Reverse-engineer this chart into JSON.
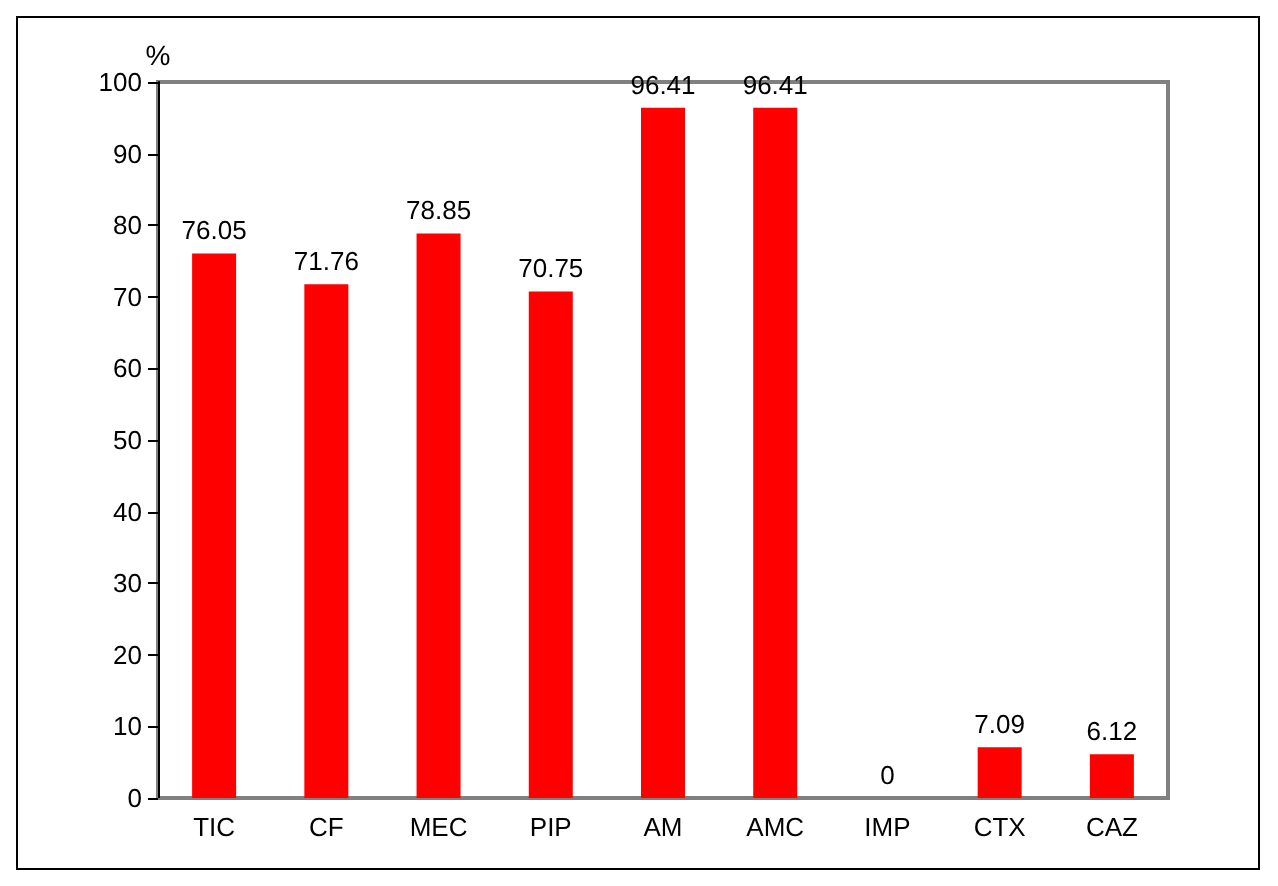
{
  "chart_data": {
    "type": "bar",
    "ylabel": "%",
    "categories": [
      "TIC",
      "CF",
      "MEC",
      "PIP",
      "AM",
      "AMC",
      "IMP",
      "CTX",
      "CAZ"
    ],
    "values": [
      76.05,
      71.76,
      78.85,
      70.75,
      96.41,
      96.41,
      0,
      7.09,
      6.12
    ],
    "color": "#ff0000",
    "ylim": [
      0,
      100
    ],
    "yticks": [
      0,
      10,
      20,
      30,
      40,
      50,
      60,
      70,
      80,
      90,
      100
    ],
    "data_labels": true,
    "grid": false
  }
}
